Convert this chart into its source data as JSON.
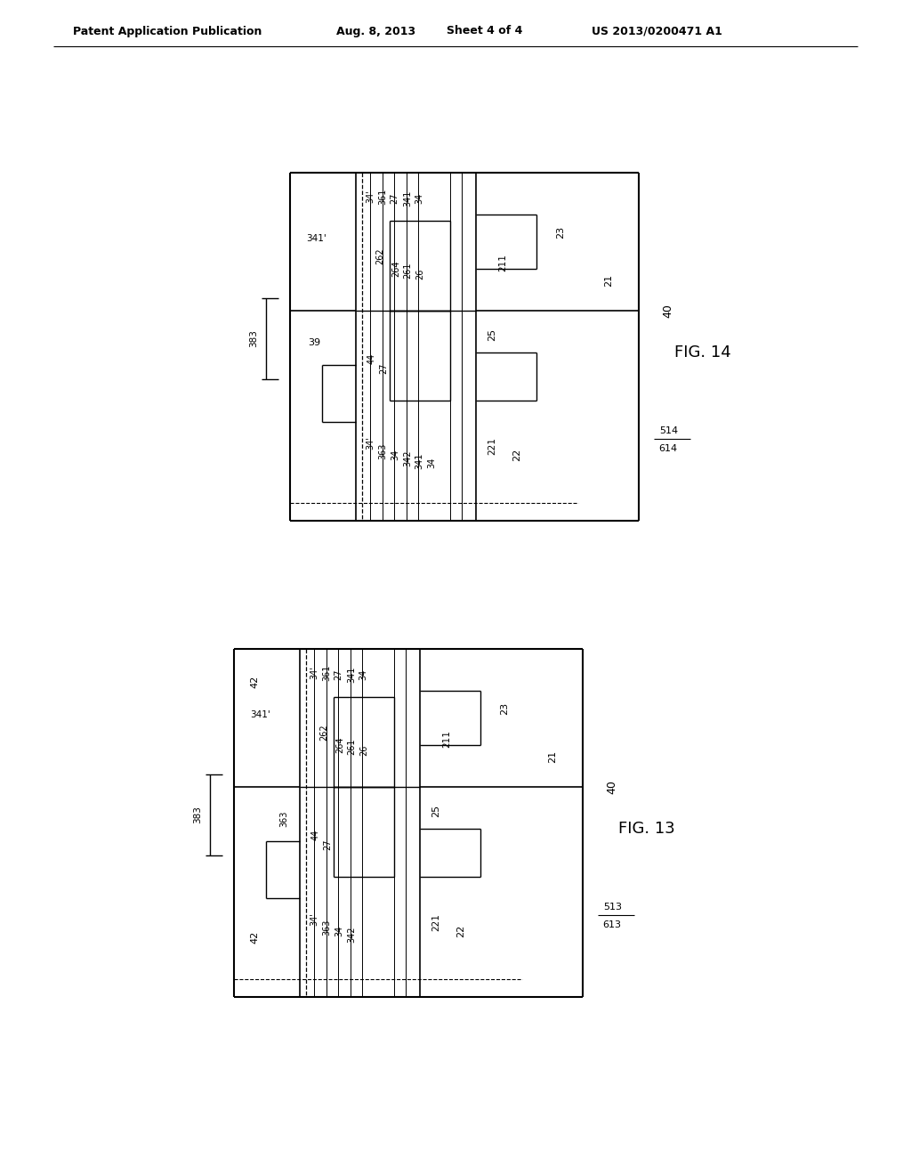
{
  "bg_color": "#ffffff",
  "line_color": "#000000",
  "header_text": "Patent Application Publication",
  "header_date": "Aug. 8, 2013",
  "header_sheet": "Sheet 4 of 4",
  "header_patent": "US 2013/0200471 A1",
  "fig14_label": "FIG. 14",
  "fig13_label": "FIG. 13"
}
